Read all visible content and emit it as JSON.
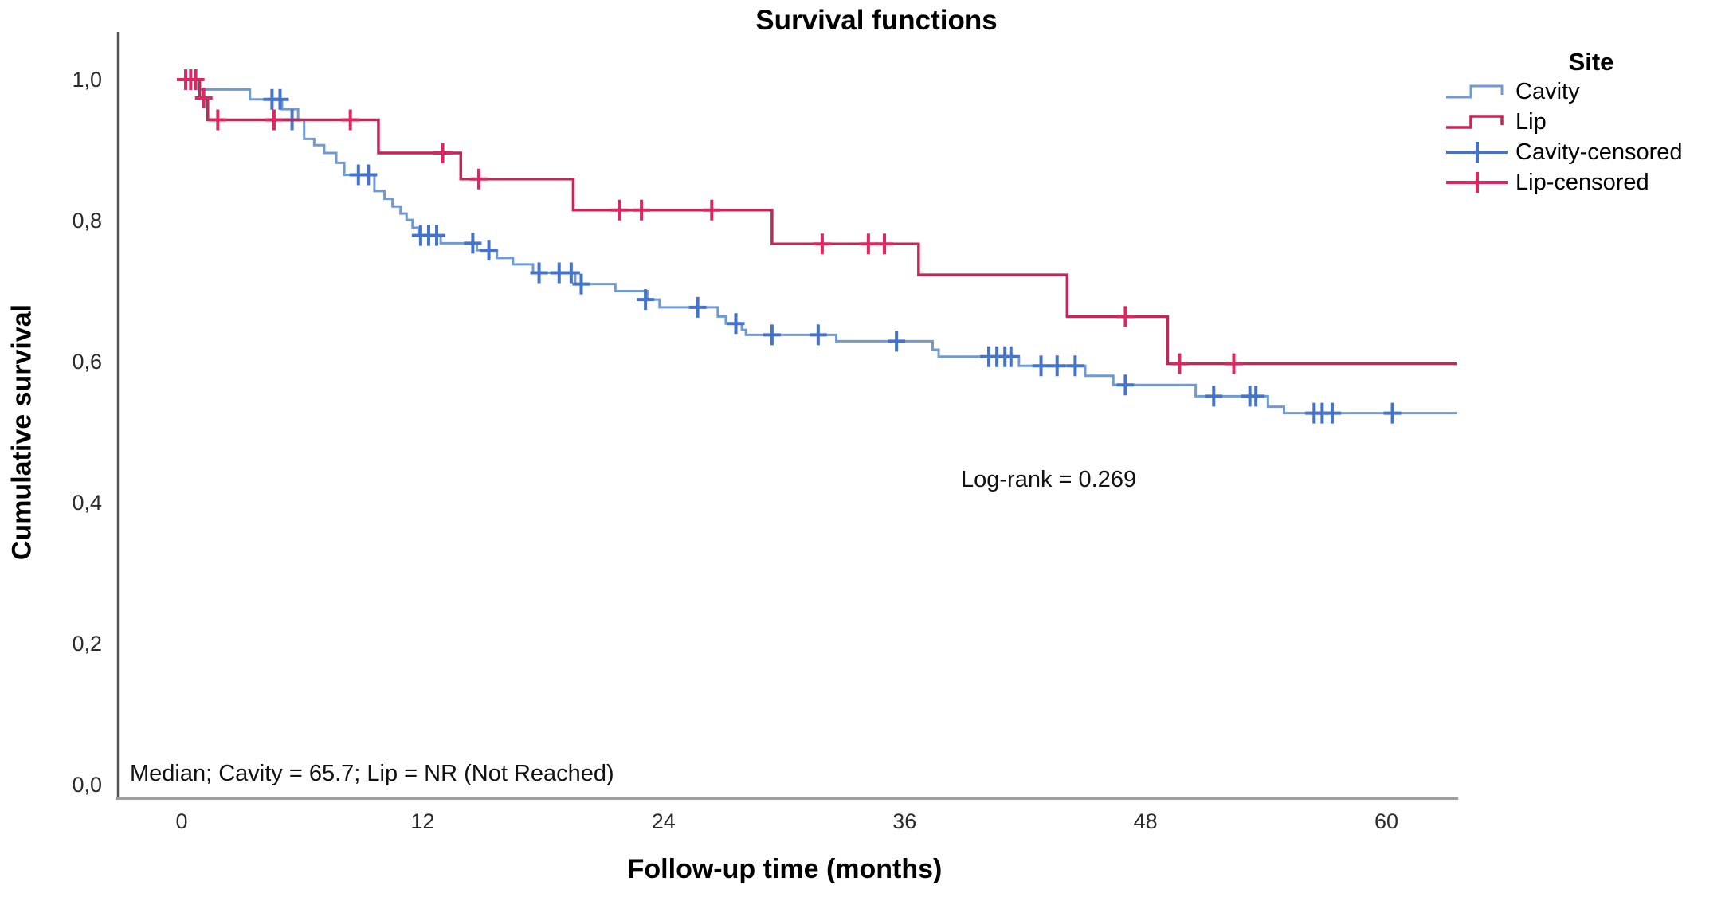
{
  "title": "Survival functions",
  "y_axis": {
    "label": "Cumulative survival",
    "ticks": [
      {
        "label": "1,0",
        "value": 1.0
      },
      {
        "label": "0,8",
        "value": 0.8
      },
      {
        "label": "0,6",
        "value": 0.6
      },
      {
        "label": "0,4",
        "value": 0.4
      },
      {
        "label": "0,2",
        "value": 0.2
      },
      {
        "label": "0,0",
        "value": 0.0
      }
    ]
  },
  "x_axis": {
    "label": "Follow-up time (months)",
    "ticks": [
      {
        "label": "0",
        "value": 0
      },
      {
        "label": "12",
        "value": 12
      },
      {
        "label": "24",
        "value": 24
      },
      {
        "label": "36",
        "value": 36
      },
      {
        "label": "48",
        "value": 48
      },
      {
        "label": "60",
        "value": 60
      }
    ]
  },
  "annotations": {
    "log_rank": "Log-rank = 0.269",
    "median": "Median; Cavity = 65.7; Lip = NR (Not Reached)"
  },
  "legend": {
    "title": "Site",
    "entries": [
      {
        "label": "Cavity",
        "type": "line",
        "color": "#6F9AD2"
      },
      {
        "label": "Lip",
        "type": "line",
        "color": "#C22755"
      },
      {
        "label": "Cavity-censored",
        "type": "censor",
        "color": "#4573C8"
      },
      {
        "label": "Lip-censored",
        "type": "censor",
        "color": "#DC2862"
      }
    ]
  },
  "chart_data": {
    "type": "line",
    "subtype": "kaplan-meier-step",
    "title": "Survival functions",
    "xlabel": "Follow-up time (months)",
    "ylabel": "Cumulative survival",
    "xlim": [
      0,
      63.5
    ],
    "ylim": [
      0.0,
      1.0
    ],
    "grid": false,
    "legend_position": "top-right",
    "x_tick_values": [
      0,
      12,
      24,
      36,
      48,
      60
    ],
    "y_tick_values": [
      1.0,
      0.8,
      0.6,
      0.4,
      0.2,
      0.0
    ],
    "annotation_points": [
      {
        "text": "Log-rank = 0.269",
        "x": 39,
        "y": 0.43
      },
      {
        "text": "Median; Cavity = 65.7; Lip = NR (Not Reached)",
        "x": 0,
        "y": 0.02
      }
    ],
    "series": [
      {
        "name": "Cavity",
        "color": "#6F9AD2",
        "censor_color": "#4573C8",
        "line_width": 3,
        "end_time": 63.5,
        "steps": [
          [
            0,
            1.0
          ],
          [
            0.9,
            0.986
          ],
          [
            3.4,
            0.972
          ],
          [
            5.0,
            0.958
          ],
          [
            5.8,
            0.943
          ],
          [
            6.1,
            0.916
          ],
          [
            6.6,
            0.907
          ],
          [
            7.1,
            0.896
          ],
          [
            7.7,
            0.882
          ],
          [
            8.1,
            0.865
          ],
          [
            9.6,
            0.842
          ],
          [
            10.1,
            0.831
          ],
          [
            10.5,
            0.82
          ],
          [
            10.9,
            0.81
          ],
          [
            11.2,
            0.801
          ],
          [
            11.5,
            0.79
          ],
          [
            11.8,
            0.779
          ],
          [
            12.9,
            0.768
          ],
          [
            14.7,
            0.758
          ],
          [
            15.7,
            0.747
          ],
          [
            16.5,
            0.738
          ],
          [
            17.5,
            0.726
          ],
          [
            19.6,
            0.71
          ],
          [
            21.6,
            0.7
          ],
          [
            23.2,
            0.688
          ],
          [
            23.8,
            0.677
          ],
          [
            26.7,
            0.664
          ],
          [
            27.1,
            0.654
          ],
          [
            27.9,
            0.645
          ],
          [
            28.1,
            0.638
          ],
          [
            32.6,
            0.629
          ],
          [
            37.4,
            0.617
          ],
          [
            37.7,
            0.607
          ],
          [
            41.7,
            0.594
          ],
          [
            45.0,
            0.58
          ],
          [
            46.4,
            0.567
          ],
          [
            50.5,
            0.551
          ],
          [
            54.1,
            0.536
          ],
          [
            54.9,
            0.527
          ]
        ],
        "censored": [
          [
            4.5,
            0.972
          ],
          [
            4.9,
            0.972
          ],
          [
            5.5,
            0.943
          ],
          [
            8.8,
            0.865
          ],
          [
            9.3,
            0.865
          ],
          [
            11.9,
            0.779
          ],
          [
            12.3,
            0.779
          ],
          [
            12.7,
            0.779
          ],
          [
            14.5,
            0.768
          ],
          [
            15.3,
            0.758
          ],
          [
            17.8,
            0.726
          ],
          [
            18.8,
            0.726
          ],
          [
            19.4,
            0.726
          ],
          [
            19.9,
            0.71
          ],
          [
            23.1,
            0.688
          ],
          [
            25.7,
            0.677
          ],
          [
            27.6,
            0.654
          ],
          [
            29.4,
            0.638
          ],
          [
            31.7,
            0.638
          ],
          [
            35.6,
            0.629
          ],
          [
            40.2,
            0.607
          ],
          [
            40.6,
            0.607
          ],
          [
            41.0,
            0.607
          ],
          [
            41.3,
            0.607
          ],
          [
            42.8,
            0.594
          ],
          [
            43.6,
            0.594
          ],
          [
            44.5,
            0.594
          ],
          [
            47.0,
            0.567
          ],
          [
            51.4,
            0.551
          ],
          [
            53.2,
            0.551
          ],
          [
            53.5,
            0.551
          ],
          [
            56.4,
            0.527
          ],
          [
            56.8,
            0.527
          ],
          [
            57.3,
            0.527
          ],
          [
            60.3,
            0.527
          ]
        ]
      },
      {
        "name": "Lip",
        "color": "#C22755",
        "censor_color": "#DC2862",
        "line_width": 3.5,
        "end_time": 63.5,
        "steps": [
          [
            0,
            1.0
          ],
          [
            0.9,
            0.974
          ],
          [
            1.3,
            0.943
          ],
          [
            9.8,
            0.896
          ],
          [
            13.9,
            0.859
          ],
          [
            19.5,
            0.815
          ],
          [
            29.4,
            0.767
          ],
          [
            36.7,
            0.723
          ],
          [
            44.1,
            0.664
          ],
          [
            49.1,
            0.597
          ]
        ],
        "censored": [
          [
            0.2,
            1.0
          ],
          [
            0.45,
            1.0
          ],
          [
            0.7,
            1.0
          ],
          [
            1.1,
            0.974
          ],
          [
            1.8,
            0.943
          ],
          [
            4.6,
            0.943
          ],
          [
            8.4,
            0.943
          ],
          [
            13.0,
            0.896
          ],
          [
            14.8,
            0.859
          ],
          [
            21.8,
            0.815
          ],
          [
            22.9,
            0.815
          ],
          [
            26.4,
            0.815
          ],
          [
            31.9,
            0.767
          ],
          [
            34.2,
            0.767
          ],
          [
            35.0,
            0.767
          ],
          [
            47.0,
            0.664
          ],
          [
            49.7,
            0.597
          ],
          [
            52.4,
            0.597
          ]
        ]
      }
    ]
  }
}
